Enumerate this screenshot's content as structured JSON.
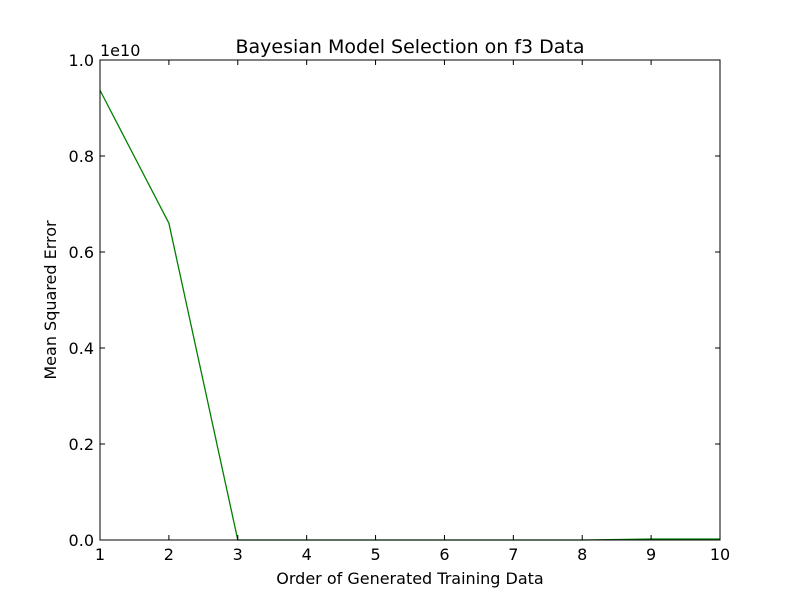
{
  "chart_data": {
    "type": "line",
    "title": "Bayesian Model Selection on f3 Data",
    "xlabel": "Order of Generated Training Data",
    "ylabel": "Mean Squared Error",
    "y_offset_label": "1e10",
    "xlim": [
      1,
      10
    ],
    "ylim": [
      0,
      1.0
    ],
    "y_scale_factor": 10000000000,
    "x_ticks": [
      1,
      2,
      3,
      4,
      5,
      6,
      7,
      8,
      9,
      10
    ],
    "y_ticks": [
      0.0,
      0.2,
      0.4,
      0.6,
      0.8,
      1.0
    ],
    "y_tick_labels": [
      "0.0",
      "0.2",
      "0.4",
      "0.6",
      "0.8",
      "1.0"
    ],
    "grid": false,
    "series": [
      {
        "color": "#008000",
        "x": [
          1,
          2,
          3,
          4,
          5,
          6,
          7,
          8,
          9,
          10
        ],
        "y": [
          0.937,
          0.66,
          0.0,
          0.0,
          0.0,
          0.0,
          0.0,
          0.0,
          0.002,
          0.002
        ]
      }
    ]
  }
}
